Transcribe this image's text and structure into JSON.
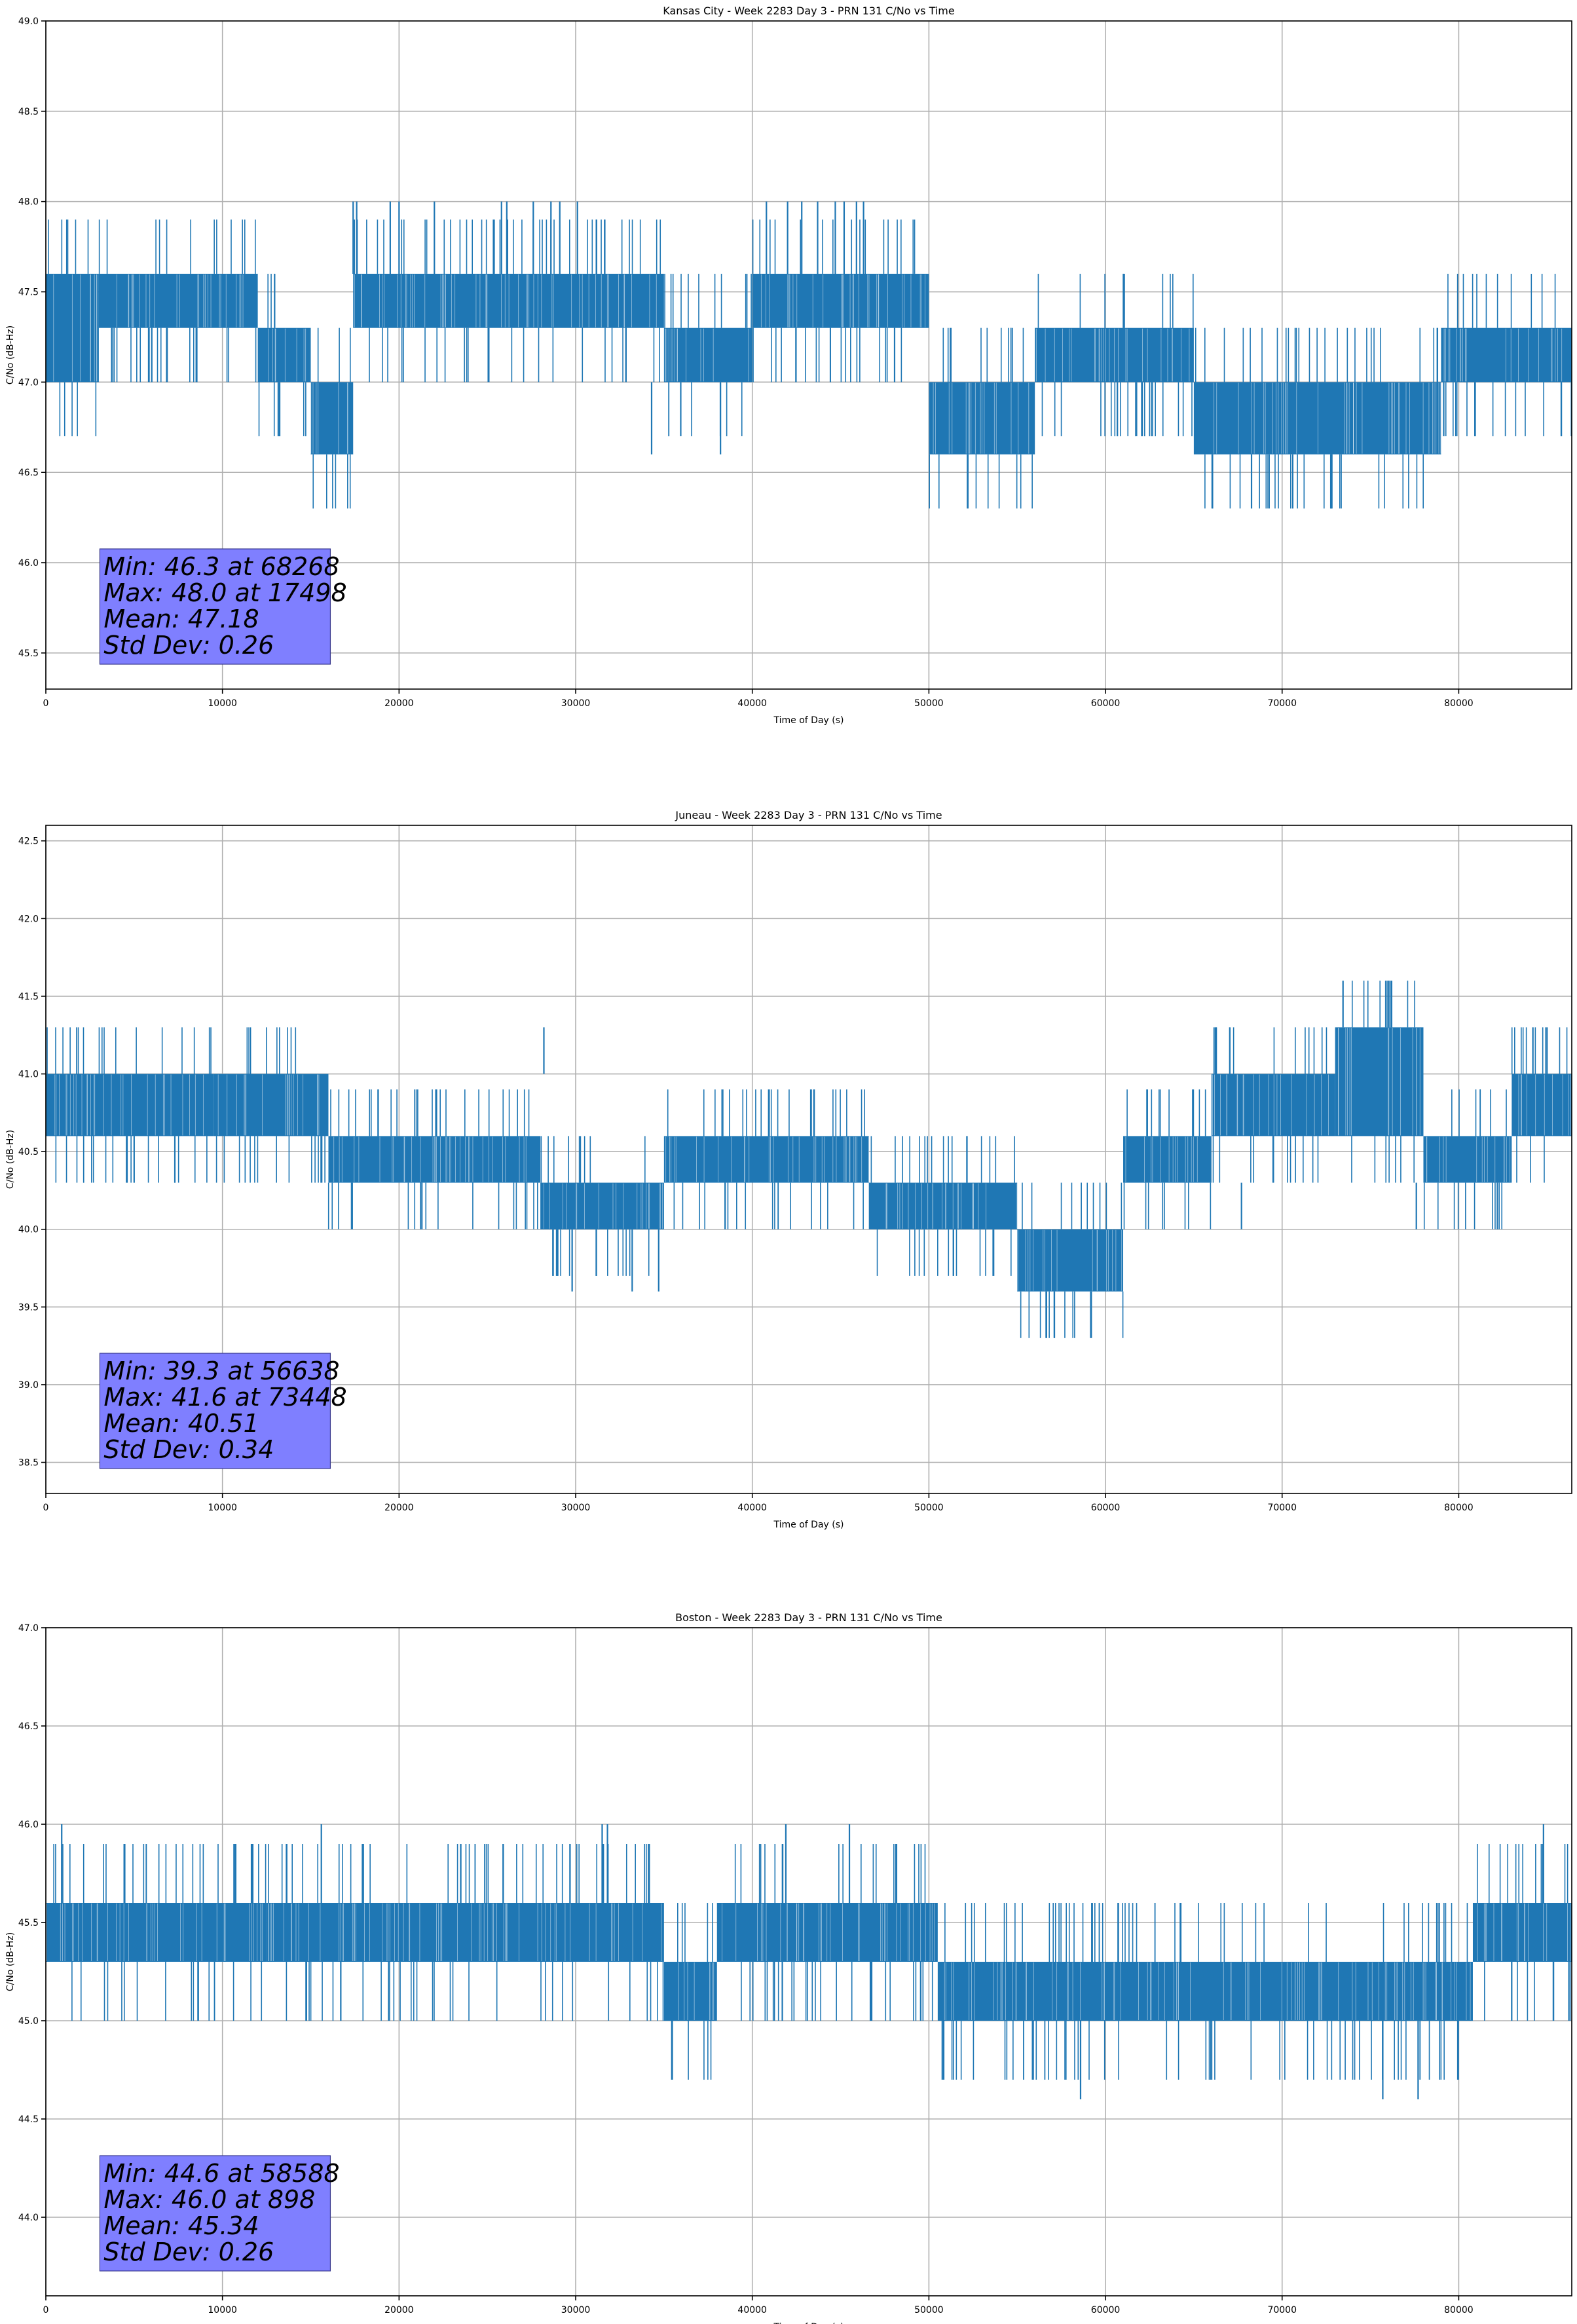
{
  "chart_data": [
    {
      "type": "line",
      "title": "Kansas City - Week 2283 Day 3 - PRN 131 C/No vs Time",
      "xlabel": "Time of Day (s)",
      "ylabel": "C/No (dB-Hz)",
      "xlim": [
        0,
        86400
      ],
      "ylim": [
        45.3,
        49.0
      ],
      "xticks": [
        0,
        10000,
        20000,
        30000,
        40000,
        50000,
        60000,
        70000,
        80000
      ],
      "yticks": [
        45.5,
        46.0,
        46.5,
        47.0,
        47.5,
        48.0,
        48.5,
        49.0
      ],
      "grid": true,
      "line_color": "#1f77b4",
      "series": [
        {
          "segments": [
            {
              "x0": 0,
              "x1": 3000,
              "low": 47.0,
              "high": 47.6
            },
            {
              "x0": 3000,
              "x1": 12000,
              "low": 47.3,
              "high": 47.6
            },
            {
              "x0": 12000,
              "x1": 15000,
              "low": 47.0,
              "high": 47.3
            },
            {
              "x0": 15000,
              "x1": 17400,
              "low": 46.6,
              "high": 47.0
            },
            {
              "x0": 17400,
              "x1": 35000,
              "low": 47.3,
              "high": 47.6
            },
            {
              "x0": 35000,
              "x1": 40000,
              "low": 47.0,
              "high": 47.3
            },
            {
              "x0": 40000,
              "x1": 50000,
              "low": 47.3,
              "high": 47.6
            },
            {
              "x0": 50000,
              "x1": 56000,
              "low": 46.6,
              "high": 47.0
            },
            {
              "x0": 56000,
              "x1": 65000,
              "low": 47.0,
              "high": 47.3
            },
            {
              "x0": 65000,
              "x1": 79000,
              "low": 46.6,
              "high": 47.0
            },
            {
              "x0": 79000,
              "x1": 86400,
              "low": 47.0,
              "high": 47.3
            }
          ],
          "spikes": [
            {
              "x": 17400,
              "low": 47.6,
              "high": 48.0
            },
            {
              "x": 17600,
              "low": 47.6,
              "high": 48.0
            },
            {
              "x": 19500,
              "low": 47.6,
              "high": 48.0
            },
            {
              "x": 20000,
              "low": 47.6,
              "high": 48.0
            },
            {
              "x": 22000,
              "low": 47.6,
              "high": 48.0
            },
            {
              "x": 25800,
              "low": 47.6,
              "high": 48.0
            },
            {
              "x": 26100,
              "low": 47.6,
              "high": 48.0
            },
            {
              "x": 27600,
              "low": 47.6,
              "high": 48.0
            },
            {
              "x": 28600,
              "low": 47.6,
              "high": 48.0
            },
            {
              "x": 29100,
              "low": 47.6,
              "high": 48.0
            },
            {
              "x": 30100,
              "low": 47.6,
              "high": 48.0
            },
            {
              "x": 34300,
              "low": 46.6,
              "high": 47.0
            },
            {
              "x": 38200,
              "low": 46.6,
              "high": 47.0
            },
            {
              "x": 40800,
              "low": 47.6,
              "high": 48.0
            },
            {
              "x": 42000,
              "low": 47.6,
              "high": 48.0
            },
            {
              "x": 42800,
              "low": 47.6,
              "high": 48.0
            },
            {
              "x": 43700,
              "low": 47.6,
              "high": 48.0
            },
            {
              "x": 44700,
              "low": 47.6,
              "high": 48.0
            },
            {
              "x": 45200,
              "low": 47.6,
              "high": 48.0
            },
            {
              "x": 45900,
              "low": 47.6,
              "high": 48.0
            },
            {
              "x": 46300,
              "low": 47.6,
              "high": 48.0
            },
            {
              "x": 68268,
              "low": 46.3,
              "high": 46.6
            },
            {
              "x": 70600,
              "low": 46.3,
              "high": 46.6
            }
          ]
        }
      ],
      "stats": [
        "Min: 46.3 at 68268",
        "Max: 48.0 at 17498",
        "Mean: 47.18",
        "Std Dev: 0.26"
      ]
    },
    {
      "type": "line",
      "title": "Juneau - Week 2283 Day 3 - PRN 131 C/No vs Time",
      "xlabel": "Time of Day (s)",
      "ylabel": "C/No (dB-Hz)",
      "xlim": [
        0,
        86400
      ],
      "ylim": [
        38.3,
        42.6
      ],
      "xticks": [
        0,
        10000,
        20000,
        30000,
        40000,
        50000,
        60000,
        70000,
        80000
      ],
      "yticks": [
        38.5,
        39.0,
        39.5,
        40.0,
        40.5,
        41.0,
        41.5,
        42.0,
        42.5
      ],
      "grid": true,
      "line_color": "#1f77b4",
      "series": [
        {
          "segments": [
            {
              "x0": 0,
              "x1": 9500,
              "low": 40.6,
              "high": 41.0
            },
            {
              "x0": 9500,
              "x1": 16000,
              "low": 40.6,
              "high": 41.0
            },
            {
              "x0": 16000,
              "x1": 28000,
              "low": 40.3,
              "high": 40.6
            },
            {
              "x0": 28000,
              "x1": 35000,
              "low": 40.0,
              "high": 40.3
            },
            {
              "x0": 35000,
              "x1": 46600,
              "low": 40.3,
              "high": 40.6
            },
            {
              "x0": 46600,
              "x1": 55000,
              "low": 40.0,
              "high": 40.3
            },
            {
              "x0": 55000,
              "x1": 61000,
              "low": 39.6,
              "high": 40.0
            },
            {
              "x0": 61000,
              "x1": 66000,
              "low": 40.3,
              "high": 40.6
            },
            {
              "x0": 66000,
              "x1": 73000,
              "low": 40.6,
              "high": 41.0
            },
            {
              "x0": 73000,
              "x1": 78000,
              "low": 40.6,
              "high": 41.3
            },
            {
              "x0": 78000,
              "x1": 83000,
              "low": 40.3,
              "high": 40.6
            },
            {
              "x0": 83000,
              "x1": 86400,
              "low": 40.6,
              "high": 41.0
            }
          ],
          "spikes": [
            {
              "x": 5000,
              "low": 40.3,
              "high": 40.6
            },
            {
              "x": 28200,
              "low": 41.0,
              "high": 41.3
            },
            {
              "x": 29800,
              "low": 39.6,
              "high": 40.0
            },
            {
              "x": 33200,
              "low": 39.6,
              "high": 40.0
            },
            {
              "x": 34700,
              "low": 39.6,
              "high": 40.0
            },
            {
              "x": 56638,
              "low": 39.3,
              "high": 39.6
            },
            {
              "x": 57100,
              "low": 39.3,
              "high": 39.6
            },
            {
              "x": 67700,
              "low": 40.0,
              "high": 40.3
            },
            {
              "x": 73448,
              "low": 41.3,
              "high": 41.6
            },
            {
              "x": 77600,
              "low": 40.0,
              "high": 40.3
            },
            {
              "x": 84200,
              "low": 41.0,
              "high": 41.3
            },
            {
              "x": 85000,
              "low": 41.0,
              "high": 41.3
            }
          ]
        }
      ],
      "stats": [
        "Min: 39.3 at 56638",
        "Max: 41.6 at 73448",
        "Mean: 40.51",
        "Std Dev: 0.34"
      ]
    },
    {
      "type": "line",
      "title": "Boston - Week 2283 Day 3 - PRN 131 C/No vs Time",
      "xlabel": "Time of Day (s)",
      "ylabel": "C/No (dB-Hz)",
      "xlim": [
        0,
        86400
      ],
      "ylim": [
        43.6,
        47.0
      ],
      "xticks": [
        0,
        10000,
        20000,
        30000,
        40000,
        50000,
        60000,
        70000,
        80000
      ],
      "yticks": [
        44.0,
        44.5,
        45.0,
        45.5,
        46.0,
        46.5,
        47.0
      ],
      "grid": true,
      "line_color": "#1f77b4",
      "series": [
        {
          "segments": [
            {
              "x0": 0,
              "x1": 12500,
              "low": 45.3,
              "high": 45.6
            },
            {
              "x0": 12500,
              "x1": 35000,
              "low": 45.3,
              "high": 45.6
            },
            {
              "x0": 35000,
              "x1": 38000,
              "low": 45.0,
              "high": 45.3
            },
            {
              "x0": 38000,
              "x1": 50500,
              "low": 45.3,
              "high": 45.6
            },
            {
              "x0": 50500,
              "x1": 80800,
              "low": 45.0,
              "high": 45.3
            },
            {
              "x0": 80800,
              "x1": 86400,
              "low": 45.3,
              "high": 45.6
            }
          ],
          "spikes": [
            {
              "x": 898,
              "low": 45.6,
              "high": 46.0
            },
            {
              "x": 15600,
              "low": 45.6,
              "high": 46.0
            },
            {
              "x": 16700,
              "low": 45.0,
              "high": 45.3
            },
            {
              "x": 31500,
              "low": 45.6,
              "high": 46.0
            },
            {
              "x": 31800,
              "low": 45.6,
              "high": 46.0
            },
            {
              "x": 41700,
              "low": 45.0,
              "high": 45.3
            },
            {
              "x": 41900,
              "low": 45.6,
              "high": 46.0
            },
            {
              "x": 45500,
              "low": 45.6,
              "high": 46.0
            },
            {
              "x": 58588,
              "low": 44.6,
              "high": 45.0
            },
            {
              "x": 75700,
              "low": 44.6,
              "high": 45.0
            },
            {
              "x": 77700,
              "low": 44.6,
              "high": 45.0
            },
            {
              "x": 83000,
              "low": 45.0,
              "high": 45.3
            },
            {
              "x": 84800,
              "low": 45.6,
              "high": 46.0
            }
          ]
        }
      ],
      "stats": [
        "Min: 44.6 at 58588",
        "Max: 46.0 at 898",
        "Mean: 45.34",
        "Std Dev: 0.26"
      ]
    }
  ]
}
